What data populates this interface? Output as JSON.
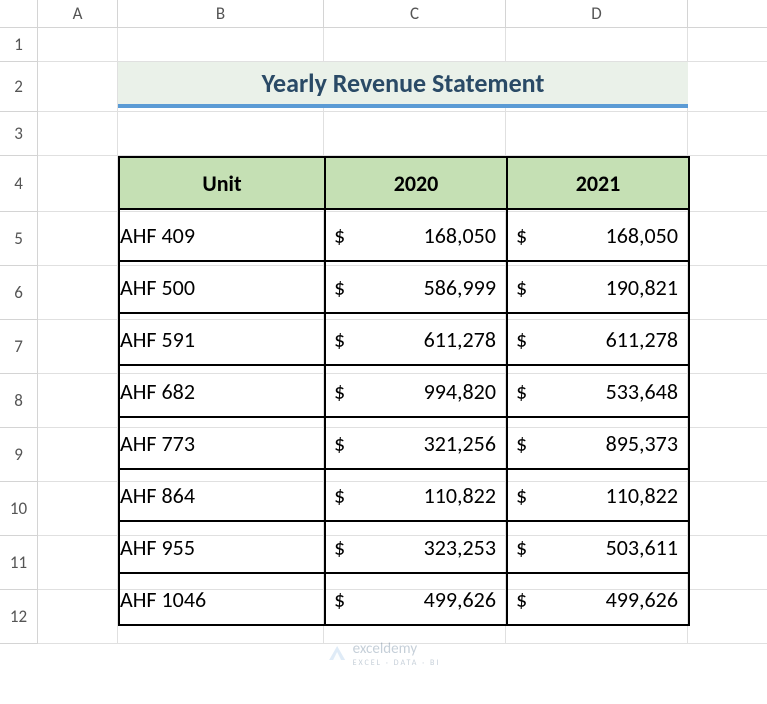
{
  "columns": {
    "letters": [
      "A",
      "B",
      "C",
      "D"
    ],
    "widths": [
      80,
      206,
      182,
      182
    ]
  },
  "rows": {
    "numbers": [
      "1",
      "2",
      "3",
      "4",
      "5",
      "6",
      "7",
      "8",
      "9",
      "10",
      "11",
      "12"
    ],
    "heights": [
      34,
      50,
      44,
      56,
      54,
      54,
      54,
      54,
      54,
      54,
      54,
      54
    ]
  },
  "title": {
    "text": "Yearly Revenue Statement",
    "background_color": "#eaf1e9",
    "underline_color": "#5b9bd5",
    "text_color": "#2a4a66",
    "font_size": 26
  },
  "table": {
    "header_bg": "#c5e0b4",
    "border_color": "#000000",
    "font_size": 22,
    "currency_symbol": "$",
    "headers": {
      "unit": "Unit",
      "y2020": "2020",
      "y2021": "2021"
    },
    "rows": [
      {
        "unit": "AHF 409",
        "y2020": "168,050",
        "y2021": "168,050"
      },
      {
        "unit": "AHF 500",
        "y2020": "586,999",
        "y2021": "190,821"
      },
      {
        "unit": "AHF 591",
        "y2020": "611,278",
        "y2021": "611,278"
      },
      {
        "unit": "AHF 682",
        "y2020": "994,820",
        "y2021": "533,648"
      },
      {
        "unit": "AHF 773",
        "y2020": "321,256",
        "y2021": "895,373"
      },
      {
        "unit": "AHF 864",
        "y2020": "110,822",
        "y2021": "110,822"
      },
      {
        "unit": "AHF 955",
        "y2020": "323,253",
        "y2021": "503,611"
      },
      {
        "unit": "AHF 1046",
        "y2020": "499,626",
        "y2021": "499,626"
      }
    ]
  },
  "watermark": {
    "brand": "exceldemy",
    "sub": "EXCEL · DATA · BI"
  }
}
